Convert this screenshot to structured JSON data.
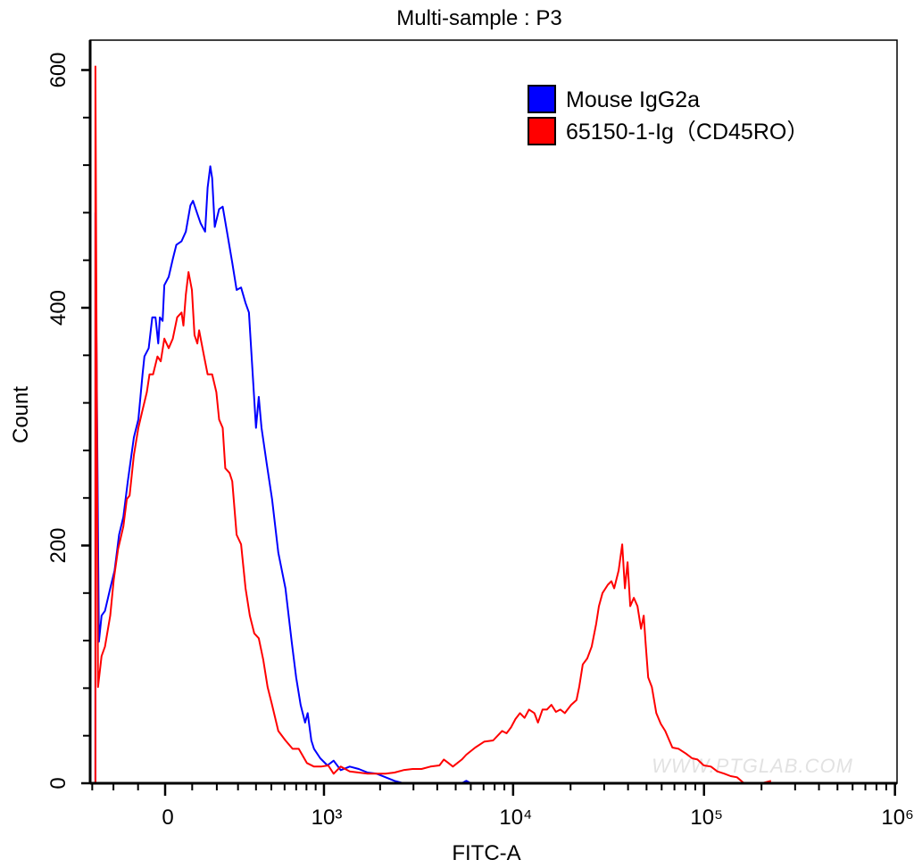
{
  "chart_data": {
    "type": "line",
    "title": "Multi-sample : P3",
    "xlabel": "FITC-A",
    "ylabel": "Count",
    "xscale": "biexponential",
    "xlim": [
      -300,
      1000000
    ],
    "ylim": [
      0,
      620
    ],
    "x_ticks": [
      {
        "value": 0,
        "label": "0"
      },
      {
        "value": 1000,
        "label": "10³"
      },
      {
        "value": 10000,
        "label": "10⁴"
      },
      {
        "value": 100000,
        "label": "10⁵"
      },
      {
        "value": 1000000,
        "label": "10⁶"
      }
    ],
    "y_ticks": [
      {
        "value": 0,
        "label": "0"
      },
      {
        "value": 200,
        "label": "200"
      },
      {
        "value": 400,
        "label": "400"
      },
      {
        "value": 600,
        "label": "600"
      }
    ],
    "grid": false,
    "legend_position": "top-right",
    "watermark": "WWW.PTGLAB.COM",
    "series": [
      {
        "name": "Mouse IgG2a",
        "color": "#0000ff",
        "x": [
          -284,
          -267,
          -254,
          -238,
          -214,
          -195,
          -176,
          -158,
          -140,
          -116,
          -99,
          -83,
          -76,
          -60,
          -47,
          -35,
          -25,
          -19,
          -9,
          -3,
          13,
          28,
          41,
          60,
          76,
          93,
          103,
          120,
          133,
          151,
          161,
          172,
          180,
          191,
          210,
          226,
          246,
          271,
          293,
          316,
          340,
          359,
          374,
          400,
          417,
          434,
          468,
          505,
          551,
          607,
          660,
          700,
          742,
          786,
          813,
          852,
          881,
          954,
          1044,
          1129,
          1233,
          1378,
          1540,
          1717,
          1918,
          2139,
          2384,
          2657,
          4000,
          5382,
          5682,
          6000
        ],
        "y": [
          480,
          119,
          141,
          145,
          164,
          179,
          209,
          224,
          254,
          291,
          306,
          344,
          359,
          366,
          392,
          392,
          370,
          392,
          389,
          419,
          426,
          441,
          453,
          456,
          464,
          486,
          490,
          479,
          471,
          464,
          501,
          519,
          509,
          468,
          483,
          485,
          464,
          438,
          415,
          417,
          404,
          396,
          359,
          299,
          325,
          299,
          269,
          239,
          194,
          164,
          119,
          89,
          66,
          51,
          59,
          36,
          29,
          21,
          15,
          19,
          11,
          14,
          12,
          9,
          8,
          5,
          2,
          0,
          0,
          0,
          2,
          0
        ]
      },
      {
        "name": "65150-1-Ig（CD45RO）",
        "color": "#ff0000",
        "x": [
          -284,
          -271,
          -254,
          -238,
          -214,
          -199,
          -180,
          -158,
          -144,
          -133,
          -116,
          -99,
          -83,
          -67,
          -57,
          -44,
          -28,
          -16,
          -3,
          13,
          28,
          44,
          60,
          67,
          76,
          86,
          99,
          109,
          120,
          127,
          144,
          161,
          180,
          198,
          210,
          226,
          238,
          258,
          271,
          293,
          316,
          340,
          364,
          390,
          417,
          445,
          474,
          505,
          551,
          607,
          668,
          724,
          804,
          881,
          965,
          1055,
          1129,
          1233,
          1378,
          1540,
          1717,
          1918,
          2139,
          2384,
          2657,
          2970,
          3309,
          3686,
          4109,
          4337,
          4579,
          4832,
          5384,
          5682,
          6330,
          7052,
          7857,
          8755,
          9239,
          9750,
          10290,
          10870,
          11480,
          12120,
          12920,
          13500,
          14250,
          15030,
          15870,
          16750,
          17680,
          18650,
          20140,
          21490,
          22190,
          23160,
          24440,
          25800,
          27240,
          28140,
          29380,
          31350,
          32740,
          33830,
          35710,
          37280,
          38500,
          39780,
          41070,
          42880,
          44810,
          46780,
          48310,
          49380,
          50980,
          53280,
          56240,
          59350,
          62640,
          68270,
          73650,
          80340,
          86600,
          92420,
          99730,
          108700,
          117300,
          127900,
          137900,
          148800,
          162100,
          201100,
          224200
        ],
        "y": [
          603,
          81,
          107,
          115,
          141,
          171,
          197,
          216,
          239,
          242,
          276,
          299,
          314,
          329,
          344,
          344,
          359,
          355,
          374,
          366,
          374,
          392,
          396,
          385,
          411,
          430,
          415,
          377,
          370,
          381,
          362,
          344,
          344,
          329,
          306,
          299,
          265,
          261,
          254,
          209,
          201,
          164,
          141,
          126,
          122,
          104,
          81,
          66,
          44,
          36,
          29,
          29,
          17,
          14,
          14,
          15,
          8,
          14,
          10,
          9,
          8,
          8,
          8,
          9,
          11,
          12,
          12,
          14,
          15,
          20,
          17,
          14,
          20,
          24,
          30,
          35,
          36,
          44,
          42,
          47,
          54,
          59,
          55,
          62,
          59,
          51,
          62,
          62,
          66,
          60,
          62,
          59,
          66,
          70,
          81,
          100,
          105,
          115,
          134,
          149,
          160,
          167,
          170,
          164,
          179,
          201,
          164,
          186,
          149,
          156,
          149,
          130,
          141,
          119,
          89,
          81,
          59,
          50,
          44,
          30,
          29,
          25,
          21,
          20,
          15,
          14,
          10,
          8,
          6,
          5,
          0,
          0,
          2
        ]
      }
    ]
  }
}
